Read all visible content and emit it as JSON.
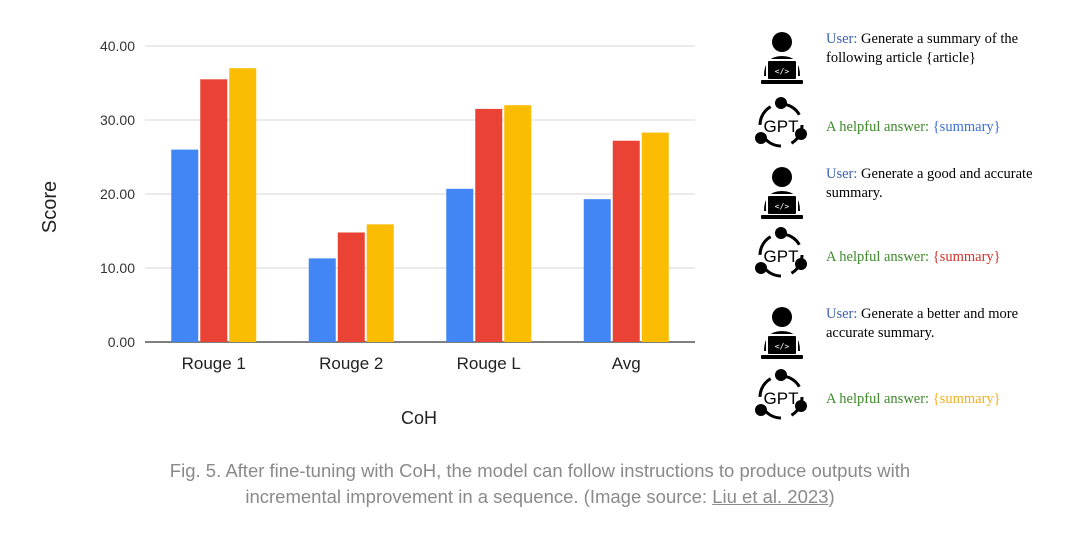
{
  "chart_data": {
    "type": "bar",
    "title": "",
    "xlabel": "CoH",
    "ylabel": "Score",
    "categories": [
      "Rouge 1",
      "Rouge 2",
      "Rouge L",
      "Avg"
    ],
    "ylim": [
      0,
      40
    ],
    "yticks": [
      "0.00",
      "10.00",
      "20.00",
      "30.00",
      "40.00"
    ],
    "grid": true,
    "series": [
      {
        "color": "#4285F4",
        "values": [
          26.0,
          11.3,
          20.7,
          19.3
        ]
      },
      {
        "color": "#EA4335",
        "values": [
          35.5,
          14.8,
          31.5,
          27.2
        ]
      },
      {
        "color": "#FBBC04",
        "values": [
          37.0,
          15.9,
          32.0,
          28.3
        ]
      }
    ]
  },
  "prompts": [
    {
      "speaker": "User:",
      "text": "Generate a summary of the following article {article}",
      "icon": "user-laptop-icon"
    },
    {
      "speaker": "A helpful answer:",
      "value": "{summary}",
      "value_color": "#3b6fd4",
      "icon": "gpt-cycle-icon"
    },
    {
      "speaker": "User:",
      "text": "Generate a good and accurate summary.",
      "icon": "user-laptop-icon"
    },
    {
      "speaker": "A helpful answer:",
      "value": "{summary}",
      "value_color": "#d0342c",
      "icon": "gpt-cycle-icon"
    },
    {
      "speaker": "User:",
      "text": "Generate a better and more accurate summary.",
      "icon": "user-laptop-icon"
    },
    {
      "speaker": "A helpful answer:",
      "value": "{summary}",
      "value_color": "#f2b01e",
      "icon": "gpt-cycle-icon"
    }
  ],
  "gpt_label": "GPT",
  "caption": {
    "text": "Fig. 5. After fine-tuning with CoH, the model can follow instructions to produce outputs with incremental improvement in a sequence. (Image source: ",
    "link": "Liu et al. 2023",
    "tail": ")"
  }
}
